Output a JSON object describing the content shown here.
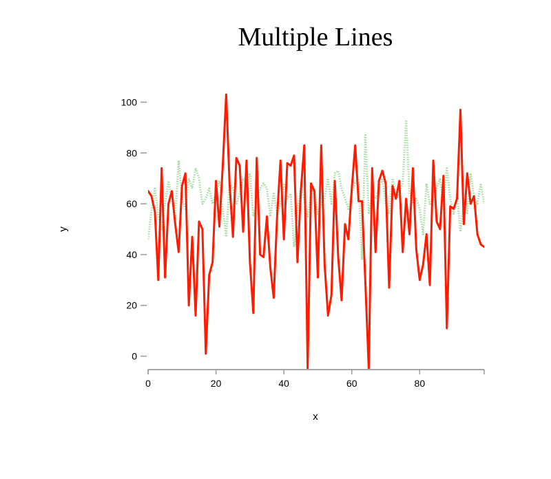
{
  "chart_data": {
    "type": "line",
    "title": "Multiple Lines",
    "xlabel": "x",
    "ylabel": "y",
    "xlim": [
      0,
      99
    ],
    "ylim": [
      -5,
      105
    ],
    "x_ticks": [
      0,
      20,
      40,
      60,
      80
    ],
    "y_ticks": [
      0,
      20,
      40,
      60,
      80,
      100
    ],
    "grid": false,
    "legend": "none",
    "series": [
      {
        "style": "dotted",
        "color": "#a6dba0",
        "x": [
          0,
          1,
          2,
          3,
          4,
          5,
          6,
          7,
          8,
          9,
          10,
          11,
          12,
          13,
          14,
          15,
          16,
          17,
          18,
          19,
          20,
          21,
          22,
          23,
          24,
          25,
          26,
          27,
          28,
          29,
          30,
          31,
          32,
          33,
          34,
          35,
          36,
          37,
          38,
          39,
          40,
          41,
          42,
          43,
          44,
          45,
          46,
          47,
          48,
          49,
          50,
          51,
          52,
          53,
          54,
          55,
          56,
          57,
          58,
          59,
          60,
          61,
          62,
          63,
          64,
          65,
          66,
          67,
          68,
          69,
          70,
          71,
          72,
          73,
          74,
          75,
          76,
          77,
          78,
          79,
          80,
          81,
          82,
          83,
          84,
          85,
          86,
          87,
          88,
          89,
          90,
          91,
          92,
          93,
          94,
          95,
          96,
          97,
          98,
          99
        ],
        "values": [
          46,
          57,
          66,
          55,
          50,
          60,
          69,
          62,
          55,
          77,
          62,
          58,
          70,
          66,
          74,
          70,
          60,
          62,
          66,
          60,
          64,
          69,
          58,
          47,
          68,
          66,
          60,
          64,
          70,
          68,
          72,
          55,
          60,
          66,
          68,
          66,
          55,
          64,
          56,
          60,
          68,
          62,
          64,
          43,
          58,
          66,
          62,
          55,
          64,
          66,
          56,
          60,
          62,
          70,
          60,
          72,
          73,
          66,
          62,
          58,
          64,
          68,
          70,
          38,
          87,
          56,
          64,
          62,
          66,
          70,
          60,
          56,
          70,
          62,
          64,
          68,
          93,
          64,
          60,
          62,
          58,
          48,
          68,
          60,
          62,
          66,
          70,
          58,
          74,
          62,
          56,
          64,
          49,
          60,
          56,
          72,
          62,
          60,
          68,
          60
        ]
      },
      {
        "style": "solid",
        "color": "#ff1a00",
        "x": [
          0,
          1,
          2,
          3,
          4,
          5,
          6,
          7,
          8,
          9,
          10,
          11,
          12,
          13,
          14,
          15,
          16,
          17,
          18,
          19,
          20,
          21,
          22,
          23,
          24,
          25,
          26,
          27,
          28,
          29,
          30,
          31,
          32,
          33,
          34,
          35,
          36,
          37,
          38,
          39,
          40,
          41,
          42,
          43,
          44,
          45,
          46,
          47,
          48,
          49,
          50,
          51,
          52,
          53,
          54,
          55,
          56,
          57,
          58,
          59,
          60,
          61,
          62,
          63,
          64,
          65,
          66,
          67,
          68,
          69,
          70,
          71,
          72,
          73,
          74,
          75,
          76,
          77,
          78,
          79,
          80,
          81,
          82,
          83,
          84,
          85,
          86,
          87,
          88,
          89,
          90,
          91,
          92,
          93,
          94,
          95,
          96,
          97,
          98,
          99
        ],
        "values": [
          65,
          63,
          57,
          30,
          74,
          31,
          60,
          65,
          52,
          41,
          67,
          72,
          20,
          47,
          16,
          53,
          50,
          1,
          32,
          37,
          69,
          51,
          75,
          103,
          68,
          47,
          78,
          75,
          49,
          77,
          37,
          17,
          78,
          40,
          39,
          55,
          35,
          23,
          55,
          77,
          46,
          76,
          75,
          79,
          37,
          65,
          83,
          -5,
          68,
          65,
          31,
          83,
          36,
          16,
          24,
          69,
          39,
          22,
          52,
          46,
          66,
          83,
          61,
          61,
          29,
          -5,
          74,
          41,
          69,
          73,
          68,
          27,
          67,
          62,
          69,
          41,
          62,
          48,
          74,
          42,
          30,
          36,
          48,
          28,
          77,
          53,
          50,
          71,
          11,
          59,
          58,
          62,
          97,
          52,
          72,
          60,
          63,
          48,
          44,
          43
        ]
      }
    ]
  }
}
